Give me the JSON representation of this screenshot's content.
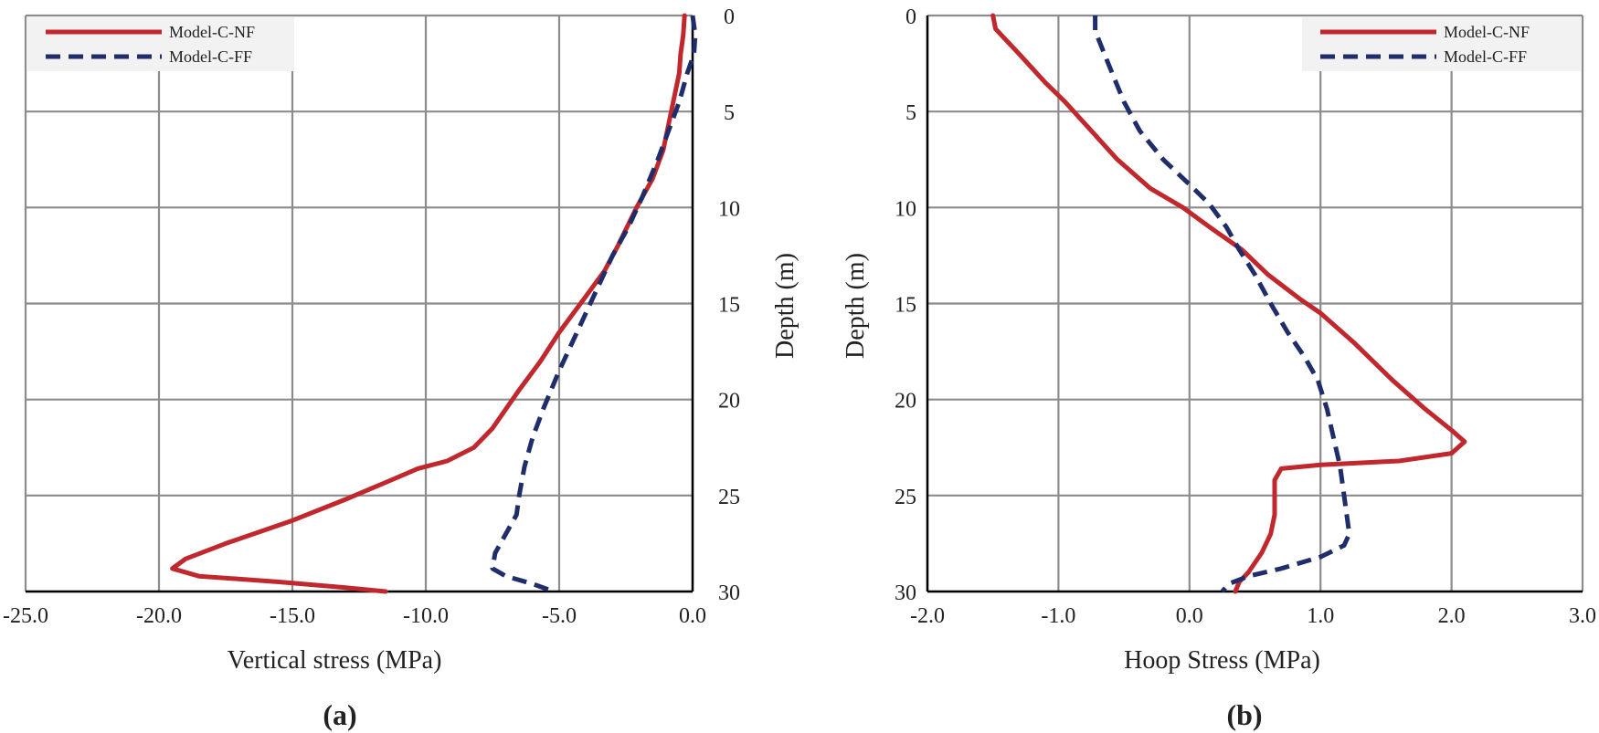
{
  "chart_data": [
    {
      "panel_label": "(a)",
      "type": "line",
      "xlabel": "Vertical stress (MPa)",
      "ylabel": "Depth (m)",
      "xlim": [
        -25.0,
        0.0
      ],
      "ylim": [
        0,
        30
      ],
      "y_inverted": true,
      "x_ticks": [
        -25.0,
        -20.0,
        -15.0,
        -10.0,
        -5.0,
        0.0
      ],
      "x_tick_labels": [
        "-25.0",
        "-20.0",
        "-15.0",
        "-10.0",
        "-5.0",
        "0.0"
      ],
      "y_ticks": [
        0,
        5,
        10,
        15,
        20,
        25,
        30
      ],
      "y_tick_labels": [
        "0",
        "5",
        "10",
        "15",
        "20",
        "25",
        "30"
      ],
      "y_axis_side": "right",
      "grid": true,
      "legend_position": "top-left",
      "series": [
        {
          "name": "Model-C-NF",
          "color": "#c0282d",
          "style": "solid",
          "points": [
            [
              -0.3,
              0
            ],
            [
              -0.35,
              1
            ],
            [
              -0.45,
              2
            ],
            [
              -0.5,
              3
            ],
            [
              -0.8,
              5
            ],
            [
              -1.1,
              7
            ],
            [
              -1.5,
              8.5
            ],
            [
              -2.1,
              10
            ],
            [
              -2.8,
              12
            ],
            [
              -3.3,
              13.3
            ],
            [
              -4.2,
              15
            ],
            [
              -5.0,
              16.5
            ],
            [
              -5.7,
              18
            ],
            [
              -6.5,
              19.5
            ],
            [
              -7.5,
              21.5
            ],
            [
              -8.2,
              22.5
            ],
            [
              -9.2,
              23.2
            ],
            [
              -10.3,
              23.6
            ],
            [
              -11.3,
              24.2
            ],
            [
              -13.0,
              25.2
            ],
            [
              -15.0,
              26.3
            ],
            [
              -17.5,
              27.5
            ],
            [
              -19.0,
              28.3
            ],
            [
              -19.5,
              28.8
            ],
            [
              -18.5,
              29.2
            ],
            [
              -15.5,
              29.5
            ],
            [
              -13.0,
              29.8
            ],
            [
              -11.5,
              30
            ]
          ]
        },
        {
          "name": "Model-C-FF",
          "color": "#1f2d6b",
          "style": "dashed",
          "points": [
            [
              0.0,
              0
            ],
            [
              0.1,
              1
            ],
            [
              0.05,
              2
            ],
            [
              -0.2,
              3
            ],
            [
              -0.5,
              4.5
            ],
            [
              -0.9,
              6
            ],
            [
              -1.3,
              7.5
            ],
            [
              -1.9,
              9.5
            ],
            [
              -2.4,
              11
            ],
            [
              -3.0,
              12.5
            ],
            [
              -3.5,
              14
            ],
            [
              -4.0,
              15.5
            ],
            [
              -4.5,
              17
            ],
            [
              -5.0,
              18.5
            ],
            [
              -5.3,
              19.5
            ],
            [
              -5.6,
              20.5
            ],
            [
              -6.0,
              22
            ],
            [
              -6.3,
              23.5
            ],
            [
              -6.5,
              25
            ],
            [
              -6.6,
              26
            ],
            [
              -7.0,
              27
            ],
            [
              -7.4,
              28
            ],
            [
              -7.5,
              28.8
            ],
            [
              -7.0,
              29.2
            ],
            [
              -6.0,
              29.6
            ],
            [
              -5.2,
              30
            ]
          ]
        }
      ]
    },
    {
      "panel_label": "(b)",
      "type": "line",
      "xlabel": "Hoop Stress (MPa)",
      "ylabel": "Depth (m)",
      "xlim": [
        -2.0,
        3.0
      ],
      "ylim": [
        0,
        30
      ],
      "y_inverted": true,
      "x_ticks": [
        -2.0,
        -1.0,
        0.0,
        1.0,
        2.0,
        3.0
      ],
      "x_tick_labels": [
        "-2.0",
        "-1.0",
        "0.0",
        "1.0",
        "2.0",
        "3.0"
      ],
      "y_ticks": [
        0,
        5,
        10,
        15,
        20,
        25,
        30
      ],
      "y_tick_labels": [
        "0",
        "5",
        "10",
        "15",
        "20",
        "25",
        "30"
      ],
      "y_axis_side": "left",
      "grid": true,
      "legend_position": "top-right",
      "series": [
        {
          "name": "Model-C-NF",
          "color": "#c0282d",
          "style": "solid",
          "points": [
            [
              -1.5,
              0
            ],
            [
              -1.48,
              0.7
            ],
            [
              -1.3,
              2
            ],
            [
              -1.1,
              3.5
            ],
            [
              -0.95,
              4.5
            ],
            [
              -0.75,
              6
            ],
            [
              -0.55,
              7.5
            ],
            [
              -0.3,
              9
            ],
            [
              -0.05,
              10
            ],
            [
              0.15,
              11
            ],
            [
              0.4,
              12.2
            ],
            [
              0.6,
              13.5
            ],
            [
              0.85,
              14.8
            ],
            [
              1.0,
              15.5
            ],
            [
              1.25,
              17
            ],
            [
              1.55,
              19
            ],
            [
              1.8,
              20.5
            ],
            [
              2.0,
              21.6
            ],
            [
              2.1,
              22.2
            ],
            [
              2.0,
              22.8
            ],
            [
              1.6,
              23.2
            ],
            [
              1.0,
              23.4
            ],
            [
              0.7,
              23.6
            ],
            [
              0.65,
              24.2
            ],
            [
              0.65,
              25
            ],
            [
              0.65,
              26
            ],
            [
              0.62,
              27
            ],
            [
              0.55,
              28
            ],
            [
              0.45,
              29
            ],
            [
              0.38,
              29.5
            ],
            [
              0.35,
              30
            ]
          ]
        },
        {
          "name": "Model-C-FF",
          "color": "#1f2d6b",
          "style": "dashed",
          "points": [
            [
              -0.72,
              0
            ],
            [
              -0.72,
              0.8
            ],
            [
              -0.62,
              2.5
            ],
            [
              -0.5,
              4.5
            ],
            [
              -0.38,
              6
            ],
            [
              -0.2,
              7.5
            ],
            [
              0.0,
              8.8
            ],
            [
              0.15,
              9.8
            ],
            [
              0.28,
              11
            ],
            [
              0.38,
              12.2
            ],
            [
              0.5,
              13.5
            ],
            [
              0.62,
              15
            ],
            [
              0.75,
              16.5
            ],
            [
              0.88,
              17.8
            ],
            [
              0.98,
              19
            ],
            [
              1.05,
              20.5
            ],
            [
              1.1,
              22
            ],
            [
              1.15,
              23.5
            ],
            [
              1.18,
              25
            ],
            [
              1.2,
              26
            ],
            [
              1.22,
              27
            ],
            [
              1.18,
              27.6
            ],
            [
              1.0,
              28.2
            ],
            [
              0.7,
              28.8
            ],
            [
              0.45,
              29.2
            ],
            [
              0.3,
              29.6
            ],
            [
              0.25,
              30
            ]
          ]
        }
      ]
    }
  ]
}
